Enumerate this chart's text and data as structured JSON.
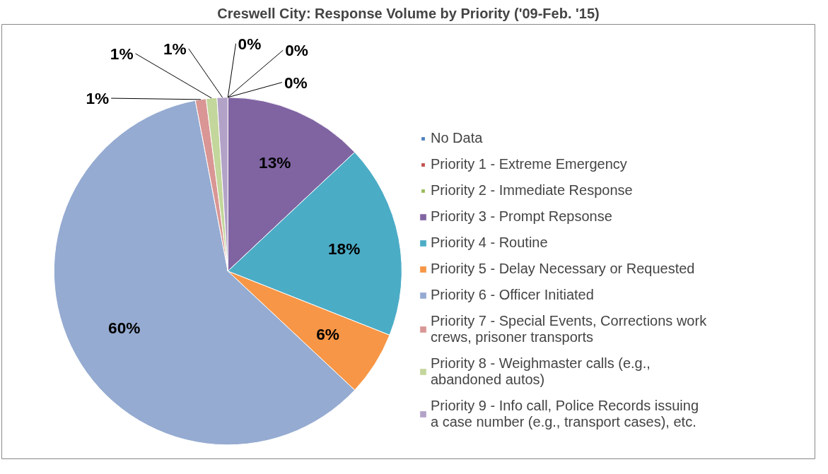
{
  "chart_data": {
    "type": "pie",
    "title": "Creswell City: Response Volume by Priority ('09-Feb. '15)",
    "categories": [
      "No Data",
      "Priority 1 - Extreme Emergency",
      "Priority 2 - Immediate Response",
      "Priority 3 - Prompt Repsonse",
      "Priority 4 - Routine",
      "Priority 5 - Delay Necessary or Requested",
      "Priority 6 - Officer Initiated",
      "Priority 7 - Special Events, Corrections work crews, prisoner transports",
      "Priority 8 - Weighmaster calls (e.g., abandoned autos)",
      "Priority 9 - Info call, Police Records issuing a case number (e.g., transport cases), etc."
    ],
    "values": [
      0,
      0,
      0,
      13,
      18,
      6,
      60,
      1,
      1,
      1
    ],
    "colors": [
      "#4f81bd",
      "#c0504d",
      "#9bbb59",
      "#8064a2",
      "#4bacc6",
      "#f79646",
      "#95abd1",
      "#d99694",
      "#c3d69b",
      "#b3a2c7"
    ],
    "value_labels": [
      "0%",
      "0%",
      "0%",
      "13%",
      "18%",
      "6%",
      "60%",
      "1%",
      "1%",
      "1%"
    ],
    "legend": "right"
  }
}
